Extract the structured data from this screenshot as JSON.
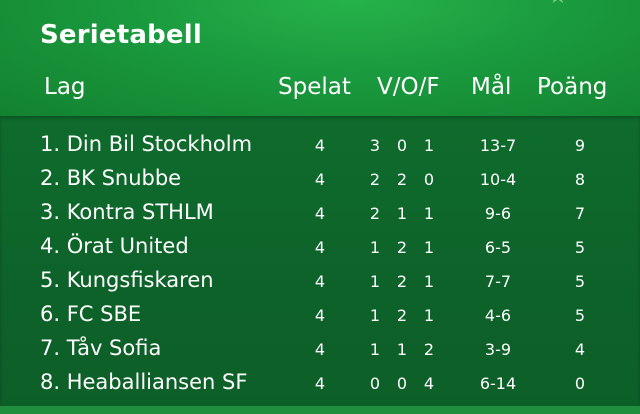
{
  "title": "Serietabell",
  "columns": {
    "team": "Lag",
    "played": "Spelat",
    "wdl": "V/O/F",
    "goals": "Mål",
    "points": "Poäng"
  },
  "rows": [
    {
      "team": "1. Din Bil Stockholm",
      "played": "4",
      "w": "3",
      "d": "0",
      "l": "1",
      "goals": "13-7",
      "points": "9"
    },
    {
      "team": "2. BK Snubbe",
      "played": "4",
      "w": "2",
      "d": "2",
      "l": "0",
      "goals": "10-4",
      "points": "8"
    },
    {
      "team": "3. Kontra STHLM",
      "played": "4",
      "w": "2",
      "d": "1",
      "l": "1",
      "goals": "9-6",
      "points": "7"
    },
    {
      "team": "4. Örat United",
      "played": "4",
      "w": "1",
      "d": "2",
      "l": "1",
      "goals": "6-5",
      "points": "5"
    },
    {
      "team": "5. Kungsfiskaren",
      "played": "4",
      "w": "1",
      "d": "2",
      "l": "1",
      "goals": "7-7",
      "points": "5"
    },
    {
      "team": "6. FC SBE",
      "played": "4",
      "w": "1",
      "d": "2",
      "l": "1",
      "goals": "4-6",
      "points": "5"
    },
    {
      "team": "7. Tåv Sofia",
      "played": "4",
      "w": "1",
      "d": "1",
      "l": "2",
      "goals": "3-9",
      "points": "4"
    },
    {
      "team": "8. Heaballiansen SF",
      "played": "4",
      "w": "0",
      "d": "0",
      "l": "4",
      "goals": "6-14",
      "points": "0"
    }
  ],
  "icons": {
    "corner": "star-icon"
  },
  "colors": {
    "header_green": "#1a9a3e",
    "body_green": "#0e6329",
    "text": "#ffffff"
  }
}
